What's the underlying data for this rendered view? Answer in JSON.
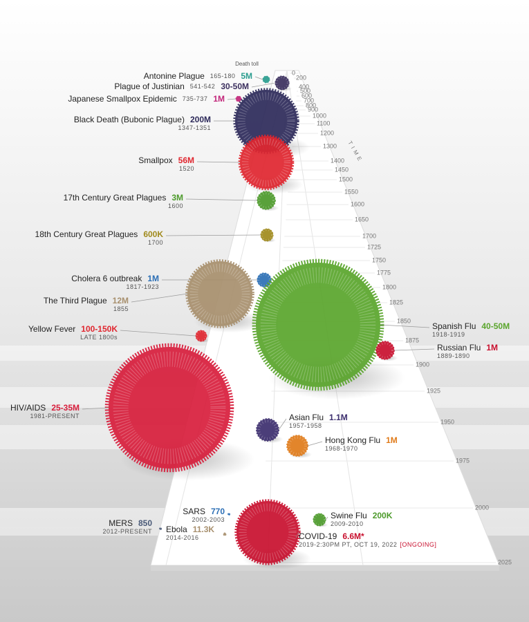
{
  "chart_data": {
    "type": "bubble",
    "size_label": "Death toll",
    "time_label": "TIME",
    "yticks": [
      0,
      200,
      400,
      500,
      600,
      700,
      800,
      900,
      1000,
      1100,
      1200,
      1300,
      1400,
      1450,
      1500,
      1550,
      1600,
      1650,
      1700,
      1725,
      1750,
      1775,
      1800,
      1825,
      1850,
      1875,
      1900,
      1925,
      1950,
      1975,
      2000,
      2025
    ],
    "events": [
      {
        "name": "Antonine Plague",
        "years": "165-180",
        "toll": "5M",
        "color": "#2a9d8f"
      },
      {
        "name": "Plague of Justinian",
        "years": "541-542",
        "toll": "30-50M",
        "color": "#3b2f5e"
      },
      {
        "name": "Japanese Smallpox Epidemic",
        "years": "735-737",
        "toll": "1M",
        "color": "#c2267a"
      },
      {
        "name": "Black Death (Bubonic Plague)",
        "years": "1347-1351",
        "toll": "200M",
        "color": "#2d2a5a"
      },
      {
        "name": "Smallpox",
        "years": "1520",
        "toll": "56M",
        "color": "#e0262f"
      },
      {
        "name": "17th Century Great Plagues",
        "years": "1600",
        "toll": "3M",
        "color": "#4c9a2a"
      },
      {
        "name": "18th Century Great Plagues",
        "years": "1700",
        "toll": "600K",
        "color": "#a08a1c"
      },
      {
        "name": "Cholera 6 outbreak",
        "years": "1817-1923",
        "toll": "1M",
        "color": "#2c6fb5"
      },
      {
        "name": "The Third Plague",
        "years": "1855",
        "toll": "12M",
        "color": "#a8906e"
      },
      {
        "name": "Yellow Fever",
        "years": "LATE 1800s",
        "toll": "100-150K",
        "color": "#e0262f"
      },
      {
        "name": "Spanish Flu",
        "years": "1918-1919",
        "toll": "40-50M",
        "color": "#5aa52c"
      },
      {
        "name": "Russian Flu",
        "years": "1889-1890",
        "toll": "1M",
        "color": "#c8102e"
      },
      {
        "name": "HIV/AIDS",
        "years": "1981-PRESENT",
        "toll": "25-35M",
        "color": "#d81e3c"
      },
      {
        "name": "Asian Flu",
        "years": "1957-1958",
        "toll": "1.1M",
        "color": "#3c2e6e"
      },
      {
        "name": "Hong Kong Flu",
        "years": "1968-1970",
        "toll": "1M",
        "color": "#e07b1a"
      },
      {
        "name": "SARS",
        "years": "2002-2003",
        "toll": "770",
        "color": "#2c6fb5"
      },
      {
        "name": "MERS",
        "years": "2012-PRESENT",
        "toll": "850",
        "color": "#4a5a78"
      },
      {
        "name": "Ebola",
        "years": "2014-2016",
        "toll": "11.3K",
        "color": "#a8906e"
      },
      {
        "name": "Swine Flu",
        "years": "2009-2010",
        "toll": "200K",
        "color": "#4c9a2a"
      },
      {
        "name": "COVID-19",
        "years": "2019-2:30PM PT, OCT 19, 2022",
        "status": "[ONGOING]",
        "toll": "6.6M*",
        "color": "#c8102e"
      }
    ]
  }
}
